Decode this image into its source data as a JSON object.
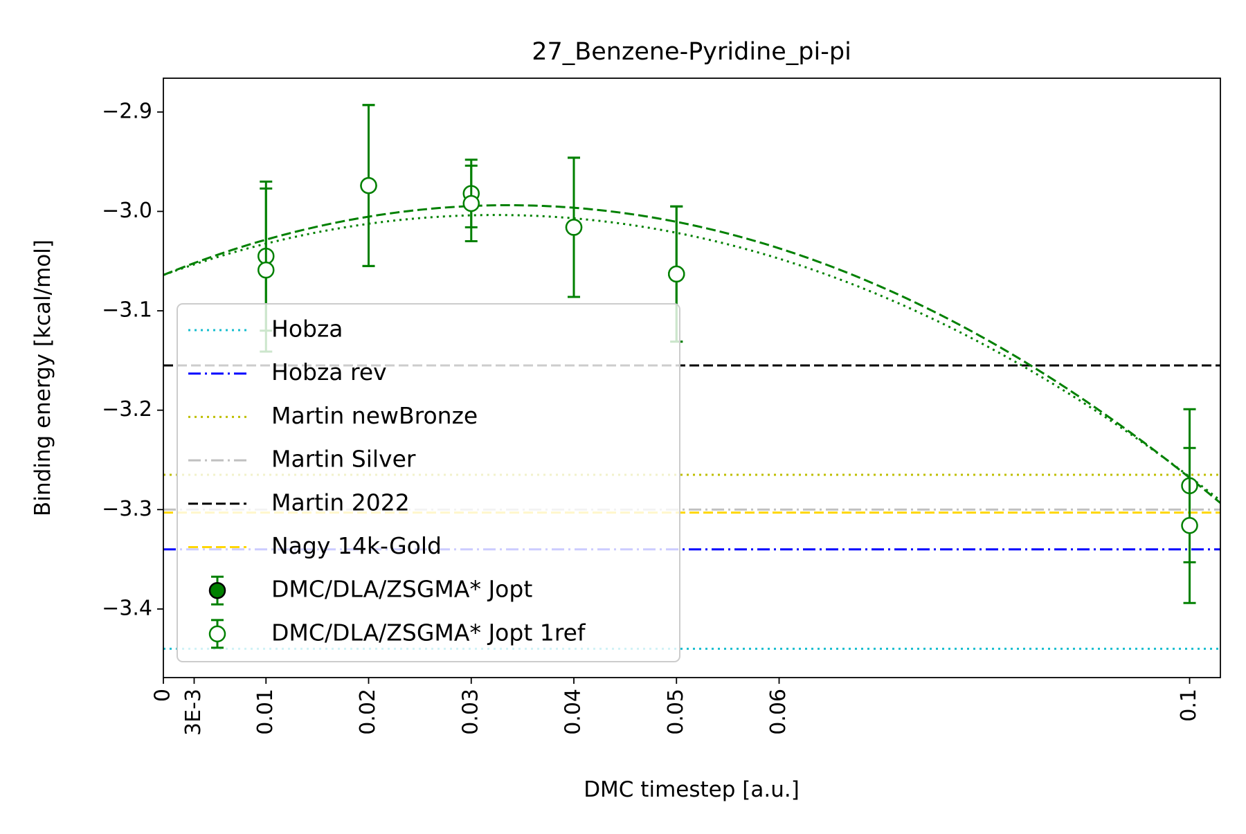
{
  "chart_data": {
    "type": "scatter",
    "title": "27_Benzene-Pyridine_pi-pi",
    "xlabel": "DMC timestep [a.u.]",
    "ylabel": "Binding energy [kcal/mol]",
    "xlim": [
      0,
      0.103
    ],
    "ylim": [
      -3.469,
      -2.866
    ],
    "x_ticks": [
      {
        "value": 0,
        "label": "0"
      },
      {
        "value": 0.003,
        "label": "3E-3"
      },
      {
        "value": 0.01,
        "label": "0.01"
      },
      {
        "value": 0.02,
        "label": "0.02"
      },
      {
        "value": 0.03,
        "label": "0.03"
      },
      {
        "value": 0.04,
        "label": "0.04"
      },
      {
        "value": 0.05,
        "label": "0.05"
      },
      {
        "value": 0.06,
        "label": "0.06"
      },
      {
        "value": 0.1,
        "label": "0.1"
      }
    ],
    "y_ticks": [
      {
        "value": -2.9,
        "label": "−2.9"
      },
      {
        "value": -3.0,
        "label": "−3.0"
      },
      {
        "value": -3.1,
        "label": "−3.1"
      },
      {
        "value": -3.2,
        "label": "−3.2"
      },
      {
        "value": -3.3,
        "label": "−3.3"
      },
      {
        "value": -3.4,
        "label": "−3.4"
      }
    ],
    "grid": false,
    "legend_position": "lower-left",
    "reference_lines": [
      {
        "name": "Hobza",
        "y": -3.44,
        "color": "#17becf",
        "style": "dotted"
      },
      {
        "name": "Hobza rev",
        "y": -3.34,
        "color": "#0000ff",
        "style": "dashdot"
      },
      {
        "name": "Martin newBronze",
        "y": -3.265,
        "color": "#bfbf00",
        "style": "dotted"
      },
      {
        "name": "Martin Silver",
        "y": -3.3,
        "color": "#c0c0c0",
        "style": "dashdot"
      },
      {
        "name": "Martin 2022",
        "y": -3.155,
        "color": "#000000",
        "style": "dashed"
      },
      {
        "name": "Nagy 14k-Gold",
        "y": -3.303,
        "color": "#ffd700",
        "style": "dashed"
      }
    ],
    "series": [
      {
        "name": "DMC/DLA/ZSGMA* Jopt",
        "marker": "filled-circle",
        "color": "#008000",
        "points": [
          {
            "x": 0.01,
            "y": -3.045,
            "err": 0.075
          },
          {
            "x": 0.02,
            "y": -2.974,
            "err": 0.081
          },
          {
            "x": 0.03,
            "y": -2.982,
            "err": 0.034
          },
          {
            "x": 0.04,
            "y": -3.016,
            "err": 0.07
          },
          {
            "x": 0.05,
            "y": -3.063,
            "err": 0.068
          },
          {
            "x": 0.1,
            "y": -3.276,
            "err": 0.077
          }
        ]
      },
      {
        "name": "DMC/DLA/ZSGMA* Jopt 1ref",
        "marker": "open-circle",
        "color": "#008000",
        "points": [
          {
            "x": 0.01,
            "y": -3.059,
            "err": 0.082
          },
          {
            "x": 0.02,
            "y": -2.974,
            "err": 0.081
          },
          {
            "x": 0.03,
            "y": -2.992,
            "err": 0.038
          },
          {
            "x": 0.04,
            "y": -3.016,
            "err": 0.07
          },
          {
            "x": 0.05,
            "y": -3.063,
            "err": 0.068
          },
          {
            "x": 0.1,
            "y": -3.316,
            "err": 0.078
          }
        ]
      }
    ],
    "fits": [
      {
        "series": "DMC/DLA/ZSGMA* Jopt",
        "style": "dashed",
        "color": "#008000",
        "coeffs": [
          -3.064,
          4.18,
          -62.2
        ]
      },
      {
        "series": "DMC/DLA/ZSGMA* Jopt 1ref",
        "style": "dotted",
        "color": "#008000",
        "coeffs": [
          -3.064,
          3.73,
          -57.6
        ]
      }
    ]
  }
}
